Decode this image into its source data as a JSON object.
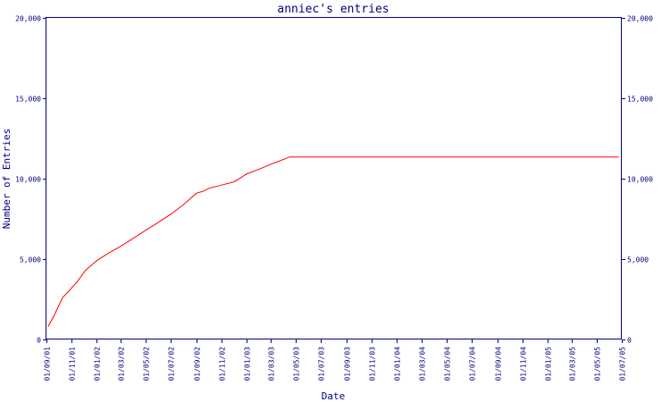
{
  "chart_data": {
    "type": "line",
    "title": "anniec's entries",
    "xlabel": "Date",
    "ylabel": "Number of Entries",
    "ylim": [
      0,
      20000
    ],
    "xlim": [
      "2001-09-01",
      "2005-07-01"
    ],
    "grid": false,
    "legend": "none",
    "y_ticks": [
      0,
      5000,
      10000,
      15000,
      20000
    ],
    "y_tick_labels": [
      "0",
      "5,000",
      "10,000",
      "15,000",
      "20,000"
    ],
    "x_ticks": [
      "2001-09-01",
      "2001-11-01",
      "2002-01-01",
      "2002-03-01",
      "2002-05-01",
      "2002-07-01",
      "2002-09-01",
      "2002-11-01",
      "2003-01-01",
      "2003-03-01",
      "2003-05-01",
      "2003-07-01",
      "2003-09-01",
      "2003-11-01",
      "2004-01-01",
      "2004-03-01",
      "2004-05-01",
      "2004-07-01",
      "2004-09-01",
      "2004-11-01",
      "2005-01-01",
      "2005-03-01",
      "2005-05-01",
      "2005-07-01"
    ],
    "x_tick_labels": [
      "01/09/01",
      "01/11/01",
      "01/01/02",
      "01/03/02",
      "01/05/02",
      "01/07/02",
      "01/09/02",
      "01/11/02",
      "01/01/03",
      "01/03/03",
      "01/05/03",
      "01/07/03",
      "01/09/03",
      "01/11/03",
      "01/01/04",
      "01/03/04",
      "01/05/04",
      "01/07/04",
      "01/09/04",
      "01/11/04",
      "01/01/05",
      "01/03/05",
      "01/05/05",
      "01/07/05"
    ],
    "series": [
      {
        "color": "#ff0000",
        "x": [
          "2001-09-05",
          "2001-09-20",
          "2001-10-10",
          "2001-10-25",
          "2001-11-15",
          "2001-12-05",
          "2002-01-01",
          "2002-02-01",
          "2002-03-01",
          "2002-04-01",
          "2002-05-01",
          "2002-06-01",
          "2002-07-01",
          "2002-08-01",
          "2002-09-01",
          "2002-09-15",
          "2002-10-01",
          "2002-11-01",
          "2002-12-01",
          "2002-12-20",
          "2003-01-01",
          "2003-02-01",
          "2003-03-01",
          "2003-04-01",
          "2003-04-15",
          "2005-06-24"
        ],
        "y": [
          800,
          1500,
          2600,
          3000,
          3600,
          4300,
          4900,
          5400,
          5800,
          6300,
          6800,
          7300,
          7800,
          8400,
          9100,
          9200,
          9400,
          9600,
          9800,
          10100,
          10300,
          10600,
          10900,
          11200,
          11350,
          11350
        ]
      }
    ]
  }
}
